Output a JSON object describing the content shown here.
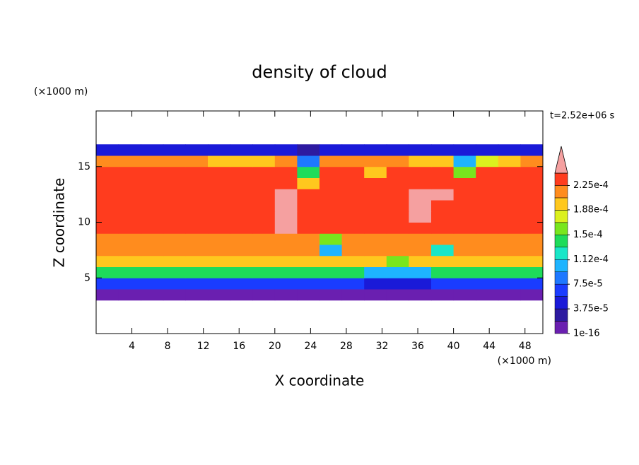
{
  "chart_data": {
    "type": "contour",
    "title": "density of cloud",
    "x_label": "X coordinate",
    "y_label": "Z coordinate",
    "x_unit": "(×1000 m)",
    "y_unit": "(×1000 m)",
    "time_label": "t=2.52e+06 s",
    "xlim": [
      0,
      50
    ],
    "ylim": [
      0,
      20
    ],
    "xticks": [
      4,
      8,
      12,
      16,
      20,
      24,
      28,
      32,
      36,
      40,
      44,
      48
    ],
    "yticks": [
      5,
      10,
      15
    ],
    "levels": [
      1e-16,
      1.875e-05,
      3.75e-05,
      5.625e-05,
      7.5e-05,
      9.375e-05,
      0.0001125,
      0.00013125,
      0.00015,
      0.00016875,
      0.0001875,
      0.00020625,
      0.000225,
      0.00024375
    ],
    "colors": [
      "#6a1fb0",
      "#2d1aa0",
      "#1a1ad8",
      "#1a3cff",
      "#1e78ff",
      "#1eb4ff",
      "#19e6c8",
      "#1edc5a",
      "#78e61e",
      "#dcf01e",
      "#ffc81e",
      "#ff8c1e",
      "#ff3c1e"
    ],
    "over_color": "#f5a0a0",
    "colorbar_ticks": [
      {
        "value": 1e-16,
        "label": "1e-16"
      },
      {
        "value": 3.75e-05,
        "label": "3.75e-5"
      },
      {
        "value": 7.5e-05,
        "label": "7.5e-5"
      },
      {
        "value": 0.000112,
        "label": "1.12e-4"
      },
      {
        "value": 0.00015,
        "label": "1.5e-4"
      },
      {
        "value": 0.000188,
        "label": "1.88e-4"
      },
      {
        "value": 0.000225,
        "label": "2.25e-4"
      }
    ],
    "x": [
      1.25,
      3.75,
      6.25,
      8.75,
      11.25,
      13.75,
      16.25,
      18.75,
      21.25,
      23.75,
      26.25,
      28.75,
      31.25,
      33.75,
      36.25,
      38.75,
      41.25,
      43.75,
      46.25,
      48.75
    ],
    "z": [
      3.5,
      4.5,
      5.5,
      6.5,
      7.5,
      8.5,
      9.5,
      10.5,
      11.5,
      12.5,
      13.5,
      14.5,
      15.5,
      16.5
    ],
    "values": [
      [
        1e-05,
        1e-05,
        1e-05,
        1e-05,
        1e-05,
        1e-05,
        1e-05,
        1e-05,
        1e-05,
        1e-05,
        1e-05,
        1e-05,
        1e-05,
        1e-05,
        1e-05,
        1e-05,
        1e-05,
        1e-05,
        1e-05,
        1e-05
      ],
      [
        6e-05,
        6e-05,
        6e-05,
        6e-05,
        6e-05,
        6e-05,
        6e-05,
        6e-05,
        6e-05,
        6e-05,
        6e-05,
        6e-05,
        4e-05,
        4e-05,
        4e-05,
        6e-05,
        6e-05,
        6e-05,
        6e-05,
        6e-05
      ],
      [
        0.00014,
        0.00014,
        0.00014,
        0.00014,
        0.00014,
        0.00014,
        0.00014,
        0.00014,
        0.00014,
        0.00014,
        0.00014,
        0.00014,
        0.00011,
        0.00011,
        0.00011,
        0.00014,
        0.00014,
        0.00014,
        0.00014,
        0.00014
      ],
      [
        0.00019,
        0.00019,
        0.00019,
        0.00019,
        0.00019,
        0.00019,
        0.00019,
        0.00019,
        0.00019,
        0.00019,
        0.00019,
        0.00019,
        0.00019,
        0.00016,
        0.00019,
        0.00019,
        0.00019,
        0.00019,
        0.00019,
        0.00019
      ],
      [
        0.00021,
        0.00021,
        0.00021,
        0.00021,
        0.00021,
        0.00021,
        0.00021,
        0.00021,
        0.00021,
        0.00021,
        0.0001,
        0.00021,
        0.00021,
        0.00021,
        0.00021,
        0.00013,
        0.00021,
        0.00021,
        0.00021,
        0.00021
      ],
      [
        0.00022,
        0.00022,
        0.00022,
        0.00022,
        0.00022,
        0.00022,
        0.00022,
        0.00022,
        0.00022,
        0.00022,
        0.00016,
        0.00022,
        0.00022,
        0.00022,
        0.00022,
        0.00022,
        0.00022,
        0.00022,
        0.00022,
        0.00022
      ],
      [
        0.00023,
        0.00023,
        0.00023,
        0.00023,
        0.00023,
        0.00023,
        0.00023,
        0.00023,
        0.00025,
        0.00023,
        0.00023,
        0.00023,
        0.00023,
        0.00023,
        0.00023,
        0.00023,
        0.00023,
        0.00023,
        0.00023,
        0.00023
      ],
      [
        0.00023,
        0.00023,
        0.00023,
        0.00023,
        0.00023,
        0.00023,
        0.00023,
        0.00023,
        0.00025,
        0.00023,
        0.00023,
        0.00023,
        0.00023,
        0.00023,
        0.00025,
        0.00023,
        0.00023,
        0.00023,
        0.00023,
        0.00023
      ],
      [
        0.00023,
        0.00023,
        0.00023,
        0.00023,
        0.00023,
        0.00023,
        0.00023,
        0.00023,
        0.00025,
        0.00023,
        0.00023,
        0.00023,
        0.00023,
        0.00023,
        0.00025,
        0.00023,
        0.00023,
        0.00023,
        0.00023,
        0.00023
      ],
      [
        0.00023,
        0.00023,
        0.00023,
        0.00023,
        0.00023,
        0.00023,
        0.00023,
        0.00023,
        0.00025,
        0.00023,
        0.00023,
        0.00023,
        0.00023,
        0.00023,
        0.00025,
        0.00025,
        0.00023,
        0.00023,
        0.00023,
        0.00023
      ],
      [
        0.00023,
        0.00023,
        0.00023,
        0.00023,
        0.00023,
        0.00023,
        0.00023,
        0.00023,
        0.00023,
        0.0002,
        0.00023,
        0.00023,
        0.00023,
        0.00023,
        0.00023,
        0.00023,
        0.00023,
        0.00023,
        0.00023,
        0.00023
      ],
      [
        0.00023,
        0.00023,
        0.00023,
        0.00023,
        0.00023,
        0.00023,
        0.00023,
        0.00023,
        0.00023,
        0.00014,
        0.00023,
        0.00023,
        0.0002,
        0.00023,
        0.00023,
        0.00023,
        0.00016,
        0.00023,
        0.00023,
        0.00023
      ],
      [
        0.00022,
        0.00022,
        0.00022,
        0.00022,
        0.00022,
        0.0002,
        0.0002,
        0.0002,
        0.00021,
        9e-05,
        0.00021,
        0.00021,
        0.00021,
        0.00021,
        0.00019,
        0.00019,
        0.00011,
        0.00018,
        0.0002,
        0.00021
      ],
      [
        5e-05,
        5e-05,
        5e-05,
        5e-05,
        5e-05,
        5e-05,
        5e-05,
        5e-05,
        5e-05,
        3e-05,
        5e-05,
        5e-05,
        5e-05,
        5e-05,
        5e-05,
        5e-05,
        5e-05,
        5e-05,
        5e-05,
        5e-05
      ]
    ]
  }
}
